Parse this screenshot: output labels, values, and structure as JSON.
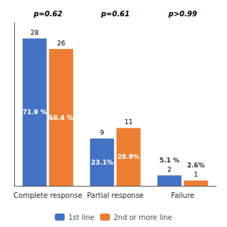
{
  "chart_data": {
    "type": "bar",
    "categories": [
      "Complete response",
      "Partial response",
      "Failure"
    ],
    "series": [
      {
        "name": "1st line",
        "color": "#4472C4",
        "values": [
          28,
          9,
          2
        ],
        "share_labels": [
          "71.9 %",
          "23.1%",
          "5.1 %"
        ]
      },
      {
        "name": "2nd or more line",
        "color": "#ED7D31",
        "values": [
          26,
          11,
          1
        ],
        "share_labels": [
          "68.4 %",
          "28.9%",
          "2.6%"
        ]
      }
    ],
    "annotations": [
      "p=0.62",
      "p=0.61",
      "p>0.99"
    ],
    "ylim": [
      0,
      31
    ],
    "tick_labels": "x",
    "grid": false,
    "legend": "bottom",
    "data_labels": true
  }
}
